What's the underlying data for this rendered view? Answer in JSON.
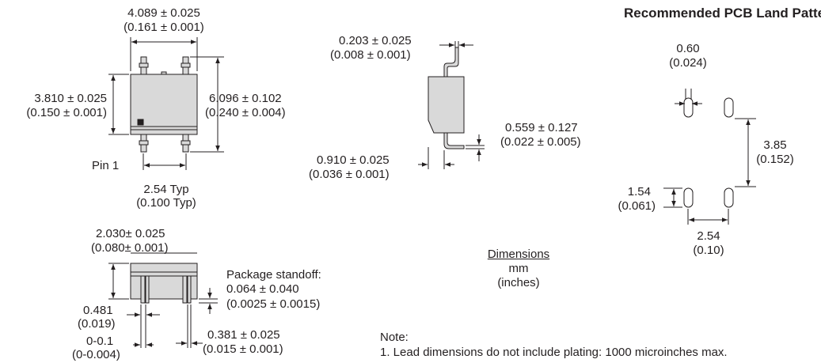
{
  "title": "Recommended PCB Land Pattern",
  "top_view": {
    "width_mm": "4.089 ± 0.025",
    "width_in": "(0.161 ± 0.001)",
    "height_mm": "3.810 ± 0.025",
    "height_in": "(0.150 ± 0.001)",
    "span_mm": "6.096 ± 0.102",
    "span_in": "(0.240 ± 0.004)",
    "pin1": "Pin 1",
    "pitch_mm": "2.54 Typ",
    "pitch_in": "(0.100 Typ)"
  },
  "side_view": {
    "lead_thick_mm": "0.203 ± 0.025",
    "lead_thick_in": "(0.008 ± 0.001)",
    "foot_h_mm": "0.559 ± 0.127",
    "foot_h_in": "(0.022 ± 0.005)",
    "foot_len_mm": "0.910 ± 0.025",
    "foot_len_in": "(0.036 ± 0.001)"
  },
  "front_view": {
    "height_mm": "2.030± 0.025",
    "height_in": "(0.080± 0.001)",
    "standoff_label": "Package standoff:",
    "standoff_mm": "0.064 ± 0.040",
    "standoff_in": "(0.0025 ± 0.0015)",
    "lead_w_mm": "0.481",
    "lead_w_in": "(0.019)",
    "offset_mm": "0-0.1",
    "offset_in": "(0-0.004)",
    "lead_w2_mm": "0.381 ± 0.025",
    "lead_w2_in": "(0.015 ± 0.001)"
  },
  "land_pattern": {
    "pad_w_mm": "0.60",
    "pad_w_in": "(0.024)",
    "row_pitch_mm": "3.85",
    "row_pitch_in": "(0.152)",
    "pad_len_mm": "1.54",
    "pad_len_in": "(0.061)",
    "col_pitch_mm": "2.54",
    "col_pitch_in": "(0.10)"
  },
  "legend": {
    "heading": "Dimensions",
    "unit": "mm",
    "unit_alt": "(inches)"
  },
  "note": {
    "heading": "Note:",
    "line1": "1. Lead dimensions do not include plating: 1000 microinches max."
  },
  "colors": {
    "body_fill": "#d9d9d9",
    "ink": "#231f20"
  }
}
